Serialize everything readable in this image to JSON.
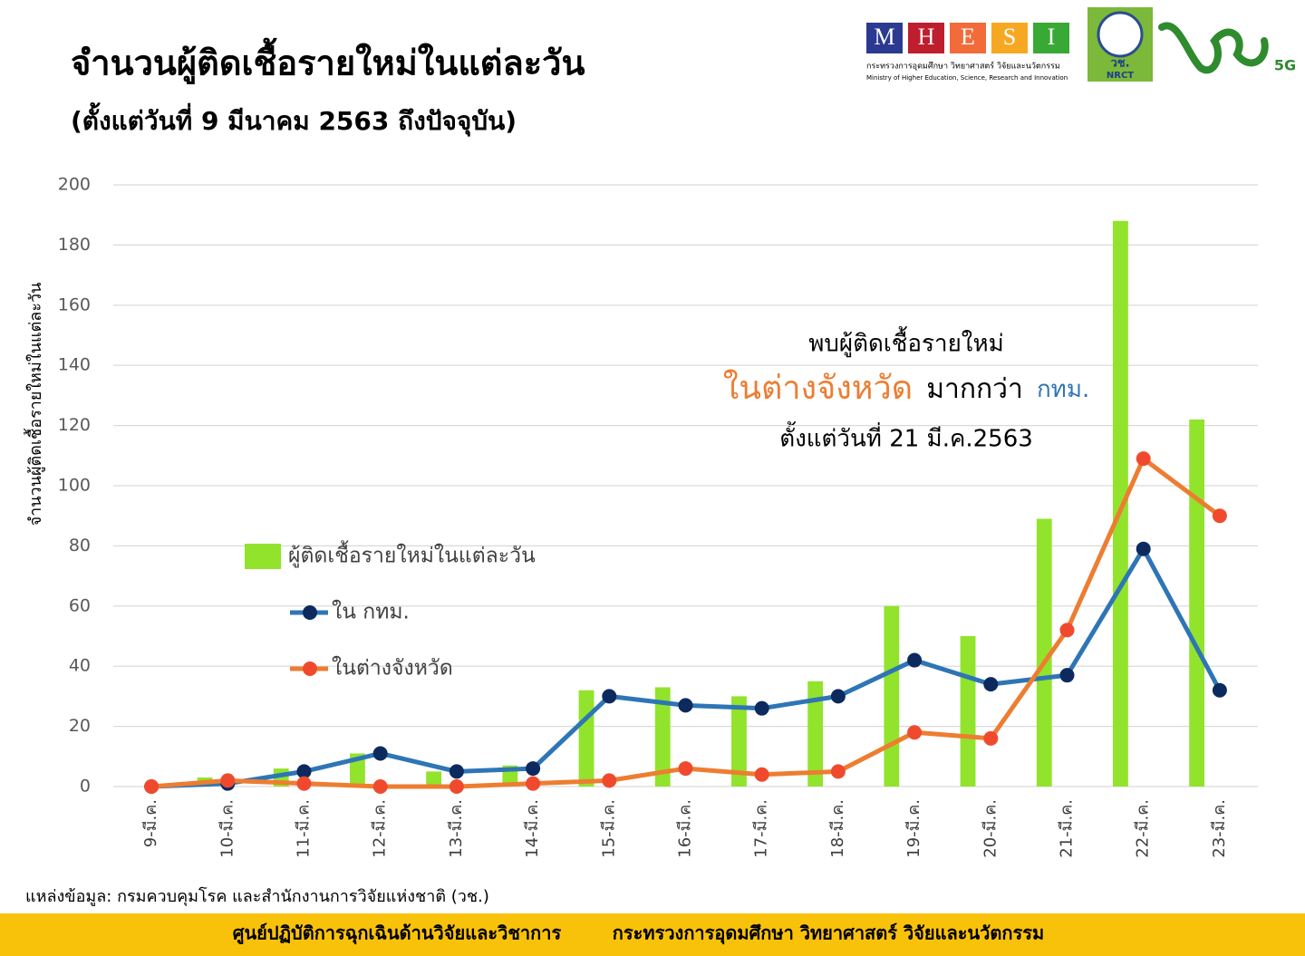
{
  "chart_data": {
    "type": "combo",
    "title": "จำนวนผู้ติดเชื้อรายใหม่ในแต่ละวัน",
    "subtitle": "(ตั้งแต่วันที่ 9 มีนาคม 2563 ถึงปัจจุบัน)",
    "y_label": "จำนวนผู้ติดเชื้อรายใหม่ในแต่ละวัน",
    "categories": [
      "9-มี.ค.",
      "10-มี.ค.",
      "11-มี.ค.",
      "12-มี.ค.",
      "13-มี.ค.",
      "14-มี.ค.",
      "15-มี.ค.",
      "16-มี.ค.",
      "17-มี.ค.",
      "18-มี.ค.",
      "19-มี.ค.",
      "20-มี.ค.",
      "21-มี.ค.",
      "22-มี.ค.",
      "23-มี.ค."
    ],
    "series": [
      {
        "name": "ผู้ติดเชื้อรายใหม่ในแต่ละวัน",
        "type": "bar",
        "color": "#92e32c",
        "values": [
          0,
          3,
          6,
          11,
          5,
          7,
          32,
          33,
          30,
          35,
          60,
          50,
          89,
          188,
          122
        ]
      },
      {
        "name": "ใน กทม.",
        "type": "line",
        "color": "#2e75b6",
        "marker_color": "#0d2a5e",
        "values": [
          0,
          1,
          5,
          11,
          5,
          6,
          30,
          27,
          26,
          30,
          42,
          34,
          37,
          79,
          32
        ]
      },
      {
        "name": "ในต่างจังหวัด",
        "type": "line",
        "color": "#ed7d31",
        "marker_color": "#f04a2e",
        "values": [
          0,
          2,
          1,
          0,
          0,
          1,
          2,
          6,
          4,
          5,
          18,
          16,
          52,
          109,
          90
        ]
      }
    ],
    "ylim": [
      0,
      200
    ],
    "yticks": [
      0,
      20,
      40,
      60,
      80,
      100,
      120,
      140,
      160,
      180,
      200
    ],
    "grid": true,
    "annotation": {
      "line1": "พบผู้ติดเชื้อรายใหม่",
      "line2": [
        "ในต่างจังหวัด",
        "มากกว่า",
        "กทม."
      ],
      "line3": "ตั้งแต่วันที่ 21 มี.ค.2563"
    },
    "source": "แหล่งข้อมูล: กรมควบคุมโรค และสำนักงานการวิจัยแห่งชาติ (วช.)",
    "footer": [
      "ศูนย์ปฏิบัติการฉุกเฉินด้านวิจัยและวิชาการ",
      "กระทรวงการอุดมศึกษา วิทยาศาสตร์ วิจัยและนวัตกรรม"
    ],
    "logos": {
      "mhesi_letters": [
        "M",
        "H",
        "E",
        "S",
        "I"
      ],
      "mhesi_thai": "กระทรวงการอุดมศึกษา วิทยาศาสตร์ วิจัยและนวัตกรรม",
      "mhesi_english": "Ministry of Higher Education, Science, Research and Innovation",
      "nrct_thai": "วช.",
      "nrct": "NRCT",
      "tag": "5G"
    }
  }
}
